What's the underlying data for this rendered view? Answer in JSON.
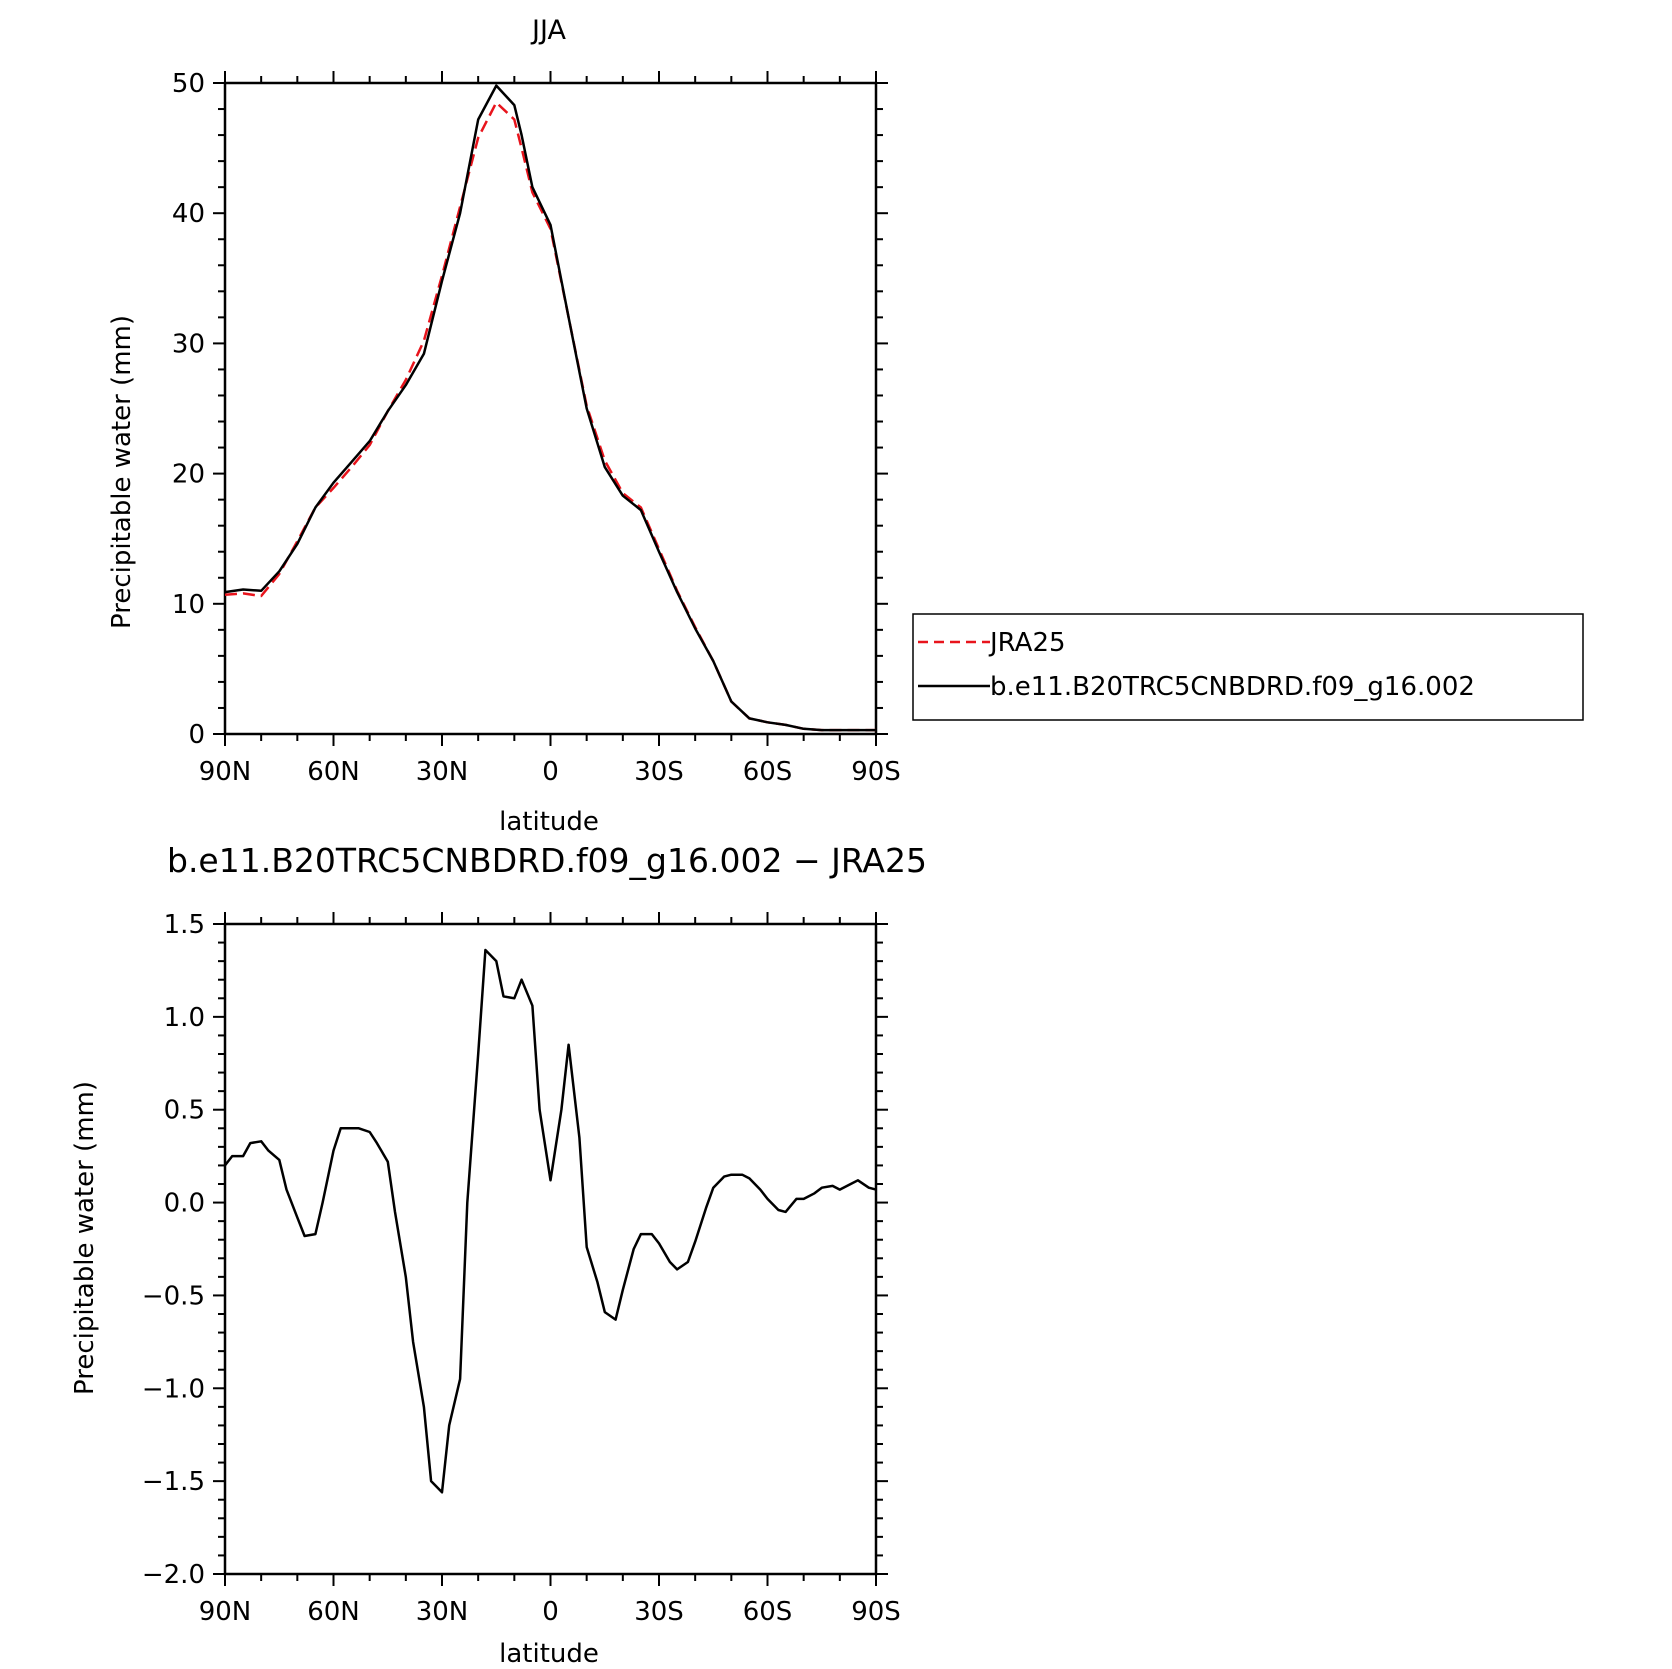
{
  "chart_data": [
    {
      "type": "line",
      "title": "JJA",
      "xlabel": "latitude",
      "ylabel": "Precipitable water (mm)",
      "xlim": [
        90,
        -90
      ],
      "ylim": [
        0,
        50
      ],
      "x_ticks": [
        90,
        60,
        30,
        0,
        -30,
        -60,
        -90
      ],
      "x_tick_labels": [
        "90N",
        "60N",
        "30N",
        "0",
        "30S",
        "60S",
        "90S"
      ],
      "y_ticks": [
        0,
        10,
        20,
        30,
        40,
        50
      ],
      "y_tick_labels": [
        "0",
        "10",
        "20",
        "30",
        "40",
        "50"
      ],
      "legend_position": "right",
      "series": [
        {
          "name": "JRA25",
          "color": "#e8141c",
          "dash": true,
          "x": [
            90,
            85,
            80,
            75,
            70,
            65,
            60,
            55,
            50,
            45,
            40,
            35,
            30,
            25,
            20,
            15,
            10,
            8,
            5,
            0,
            -5,
            -10,
            -15,
            -20,
            -25,
            -30,
            -35,
            -40,
            -45,
            -50,
            -55,
            -60,
            -65,
            -70,
            -75,
            -80,
            -85,
            -90
          ],
          "y": [
            10.7,
            10.8,
            10.6,
            12.3,
            14.8,
            17.4,
            18.9,
            20.5,
            22.2,
            24.8,
            27.2,
            30.2,
            35.2,
            40.5,
            45.8,
            48.5,
            47.2,
            45.0,
            41.6,
            38.8,
            32.0,
            25.2,
            21.0,
            18.5,
            17.4,
            14.2,
            11.0,
            8.2,
            5.6,
            2.5,
            1.2,
            0.9,
            0.7,
            0.4,
            0.3,
            0.3,
            0.3,
            0.3
          ]
        },
        {
          "name": "b.e11.B20TRC5CNBDRD.f09_g16.002",
          "color": "#000000",
          "dash": false,
          "x": [
            90,
            85,
            80,
            75,
            70,
            65,
            60,
            55,
            50,
            45,
            40,
            35,
            30,
            25,
            20,
            15,
            10,
            8,
            5,
            0,
            -5,
            -10,
            -15,
            -20,
            -25,
            -30,
            -35,
            -40,
            -45,
            -50,
            -55,
            -60,
            -65,
            -70,
            -75,
            -80,
            -85,
            -90
          ],
          "y": [
            10.9,
            11.1,
            11.0,
            12.5,
            14.6,
            17.4,
            19.3,
            20.9,
            22.5,
            24.8,
            26.8,
            29.2,
            34.8,
            40.0,
            47.2,
            49.8,
            48.3,
            46.0,
            42.0,
            39.1,
            32.0,
            25.0,
            20.5,
            18.3,
            17.2,
            14.0,
            10.9,
            8.1,
            5.6,
            2.5,
            1.2,
            0.9,
            0.7,
            0.4,
            0.3,
            0.3,
            0.3,
            0.3
          ]
        }
      ]
    },
    {
      "type": "line",
      "title": "b.e11.B20TRC5CNBDRD.f09_g16.002 − JRA25",
      "xlabel": "latitude",
      "ylabel": "Precipitable water (mm)",
      "xlim": [
        90,
        -90
      ],
      "ylim": [
        -2.0,
        1.5
      ],
      "x_ticks": [
        90,
        60,
        30,
        0,
        -30,
        -60,
        -90
      ],
      "x_tick_labels": [
        "90N",
        "60N",
        "30N",
        "0",
        "30S",
        "60S",
        "90S"
      ],
      "y_ticks": [
        1.5,
        1.0,
        0.5,
        0.0,
        -0.5,
        -1.0,
        -1.5,
        -2.0
      ],
      "y_tick_labels": [
        "1.5",
        "1.0",
        "0.5",
        "0.0",
        "−0.5",
        "−1.0",
        "−1.5",
        "−2.0"
      ],
      "series": [
        {
          "color": "#000000",
          "dash": false,
          "x": [
            90,
            88,
            85,
            83,
            80,
            78,
            75,
            73,
            70,
            68,
            65,
            63,
            60,
            58,
            55,
            53,
            50,
            48,
            45,
            43,
            40,
            38,
            35,
            33,
            30,
            28,
            25,
            23,
            20,
            18,
            15,
            13,
            10,
            8,
            5,
            3,
            0,
            -3,
            -5,
            -8,
            -10,
            -13,
            -15,
            -18,
            -20,
            -23,
            -25,
            -28,
            -30,
            -33,
            -35,
            -38,
            -40,
            -43,
            -45,
            -48,
            -50,
            -53,
            -55,
            -58,
            -60,
            -63,
            -65,
            -68,
            -70,
            -73,
            -75,
            -78,
            -80,
            -83,
            -85,
            -88,
            -90
          ],
          "y": [
            0.2,
            0.25,
            0.25,
            0.32,
            0.33,
            0.28,
            0.23,
            0.07,
            -0.08,
            -0.18,
            -0.17,
            0.0,
            0.28,
            0.4,
            0.4,
            0.4,
            0.38,
            0.32,
            0.22,
            -0.05,
            -0.4,
            -0.75,
            -1.1,
            -1.5,
            -1.56,
            -1.2,
            -0.95,
            0.0,
            0.8,
            1.36,
            1.3,
            1.11,
            1.1,
            1.2,
            1.06,
            0.5,
            0.12,
            0.5,
            0.85,
            0.35,
            -0.24,
            -0.43,
            -0.59,
            -0.63,
            -0.47,
            -0.25,
            -0.17,
            -0.17,
            -0.22,
            -0.32,
            -0.36,
            -0.32,
            -0.21,
            -0.03,
            0.08,
            0.14,
            0.15,
            0.15,
            0.13,
            0.07,
            0.02,
            -0.04,
            -0.05,
            0.02,
            0.02,
            0.05,
            0.08,
            0.09,
            0.07,
            0.1,
            0.12,
            0.08,
            0.07
          ]
        }
      ]
    }
  ]
}
